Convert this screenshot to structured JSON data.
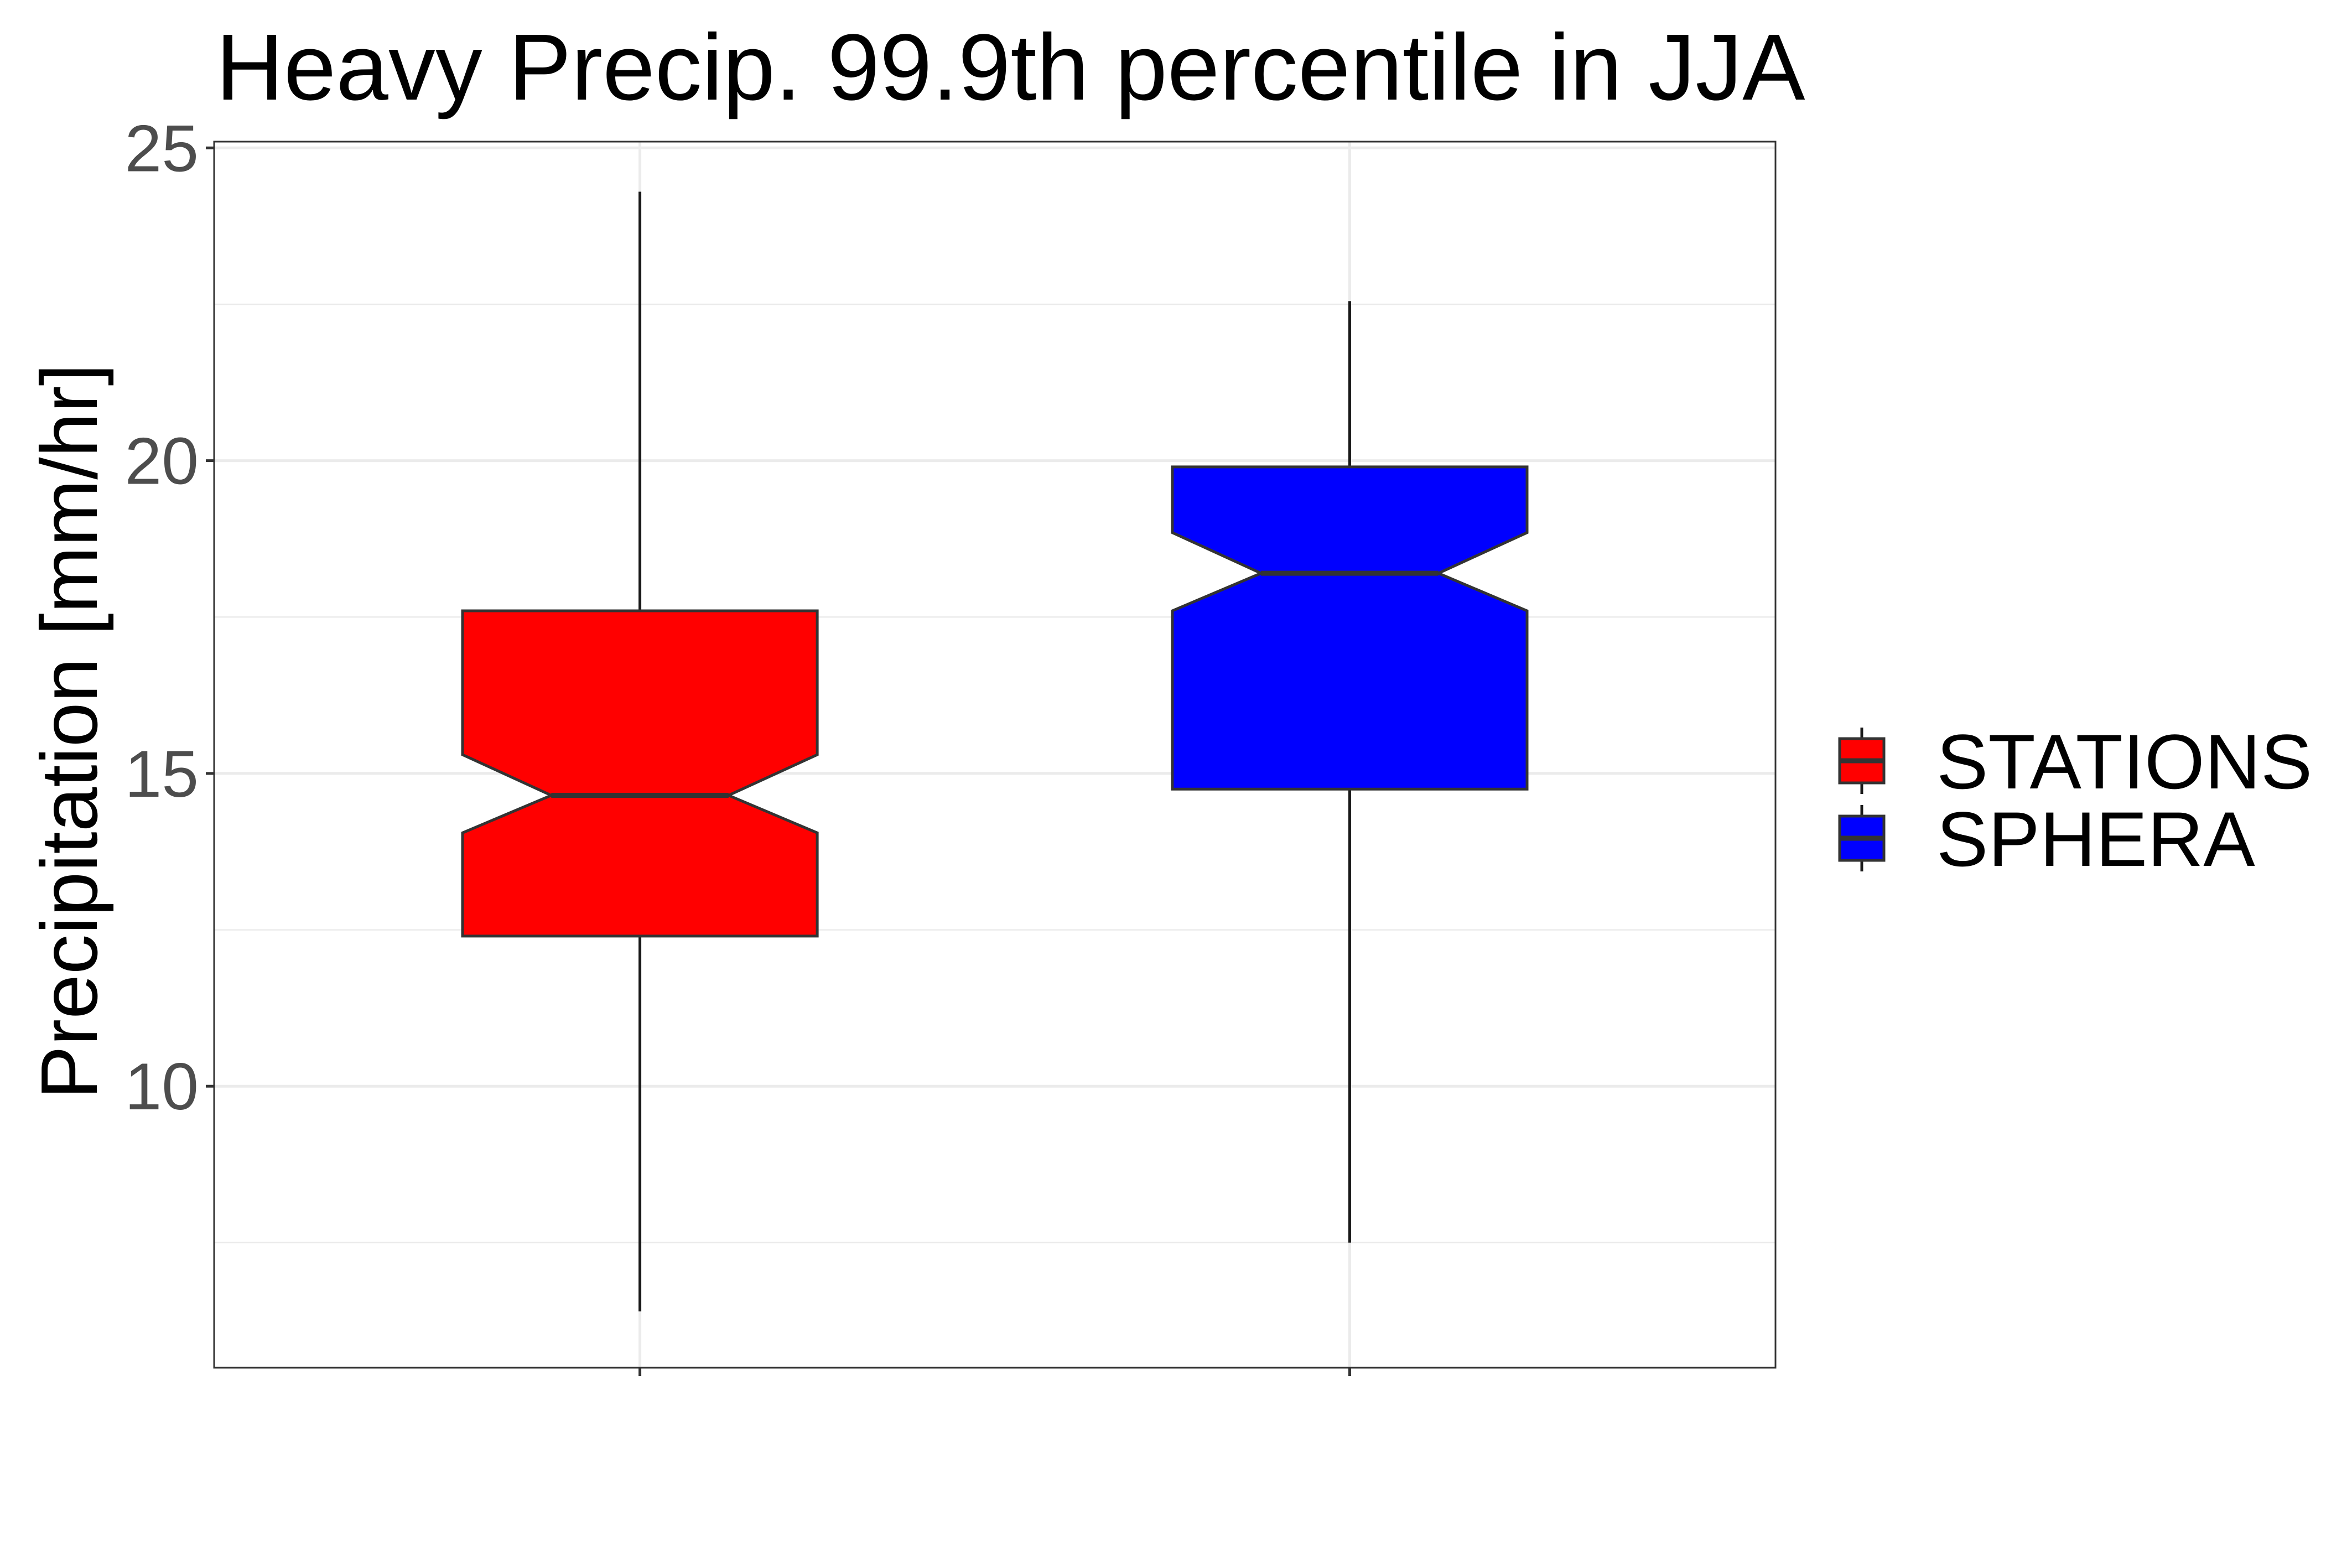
{
  "chart_data": {
    "type": "boxplot",
    "title": "Heavy Precip. 99.9th percentile in JJA",
    "xlabel": "",
    "ylabel": "Precipitation [mm/hr]",
    "ylim": [
      5.5,
      25.1
    ],
    "y_ticks": [
      10,
      15,
      20,
      25
    ],
    "y_minor_ticks": [
      7.5,
      12.5,
      17.5,
      22.5
    ],
    "grid": true,
    "notched": true,
    "legend_position": "right",
    "series": [
      {
        "name": "STATIONS",
        "color": "#ff0000",
        "whisker_low": 6.4,
        "q1": 12.4,
        "median": 14.65,
        "q3": 17.6,
        "whisker_high": 24.3,
        "notch_low": 14.05,
        "notch_high": 15.3
      },
      {
        "name": "SPHERA",
        "color": "#0000ff",
        "whisker_low": 7.5,
        "q1": 14.75,
        "median": 18.2,
        "q3": 19.9,
        "whisker_high": 22.55,
        "notch_low": 17.6,
        "notch_high": 18.85
      }
    ]
  }
}
